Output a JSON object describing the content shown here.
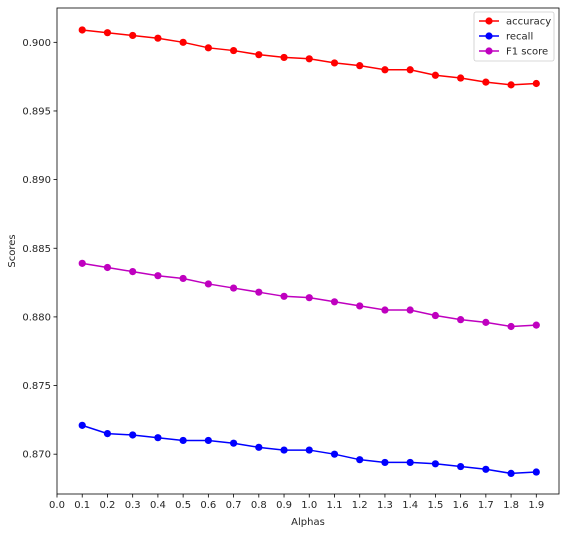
{
  "chart_data": {
    "type": "line",
    "title": "",
    "xlabel": "Alphas",
    "ylabel": "Scores",
    "xlim": [
      0.0,
      1.99
    ],
    "ylim": [
      0.8671,
      0.9025
    ],
    "x_ticks": [
      "0.0",
      "0.1",
      "0.2",
      "0.3",
      "0.4",
      "0.5",
      "0.6",
      "0.7",
      "0.8",
      "0.9",
      "1.0",
      "1.1",
      "1.2",
      "1.3",
      "1.4",
      "1.5",
      "1.6",
      "1.7",
      "1.8",
      "1.9"
    ],
    "y_ticks": [
      "0.870",
      "0.875",
      "0.880",
      "0.885",
      "0.890",
      "0.895",
      "0.900"
    ],
    "x": [
      0.1,
      0.2,
      0.3,
      0.4,
      0.5,
      0.6,
      0.7,
      0.8,
      0.9,
      1.0,
      1.1,
      1.2,
      1.3,
      1.4,
      1.5,
      1.6,
      1.7,
      1.8,
      1.9
    ],
    "grid": false,
    "legend_position": "top-right",
    "series": [
      {
        "name": "accuracy",
        "color": "#ff0000",
        "values": [
          0.9009,
          0.9007,
          0.9005,
          0.9003,
          0.9,
          0.8996,
          0.8994,
          0.8991,
          0.8989,
          0.8988,
          0.8985,
          0.8983,
          0.898,
          0.898,
          0.8976,
          0.8974,
          0.8971,
          0.8969,
          0.897
        ]
      },
      {
        "name": "recall",
        "color": "#0000ff",
        "values": [
          0.8721,
          0.8715,
          0.8714,
          0.8712,
          0.871,
          0.871,
          0.8708,
          0.8705,
          0.8703,
          0.8703,
          0.87,
          0.8696,
          0.8694,
          0.8694,
          0.8693,
          0.8691,
          0.8689,
          0.8686,
          0.8687
        ]
      },
      {
        "name": "F1 score",
        "color": "#bf00bf",
        "values": [
          0.8839,
          0.8836,
          0.8833,
          0.883,
          0.8828,
          0.8824,
          0.8821,
          0.8818,
          0.8815,
          0.8814,
          0.8811,
          0.8808,
          0.8805,
          0.8805,
          0.8801,
          0.8798,
          0.8796,
          0.8793,
          0.8794
        ]
      }
    ]
  }
}
